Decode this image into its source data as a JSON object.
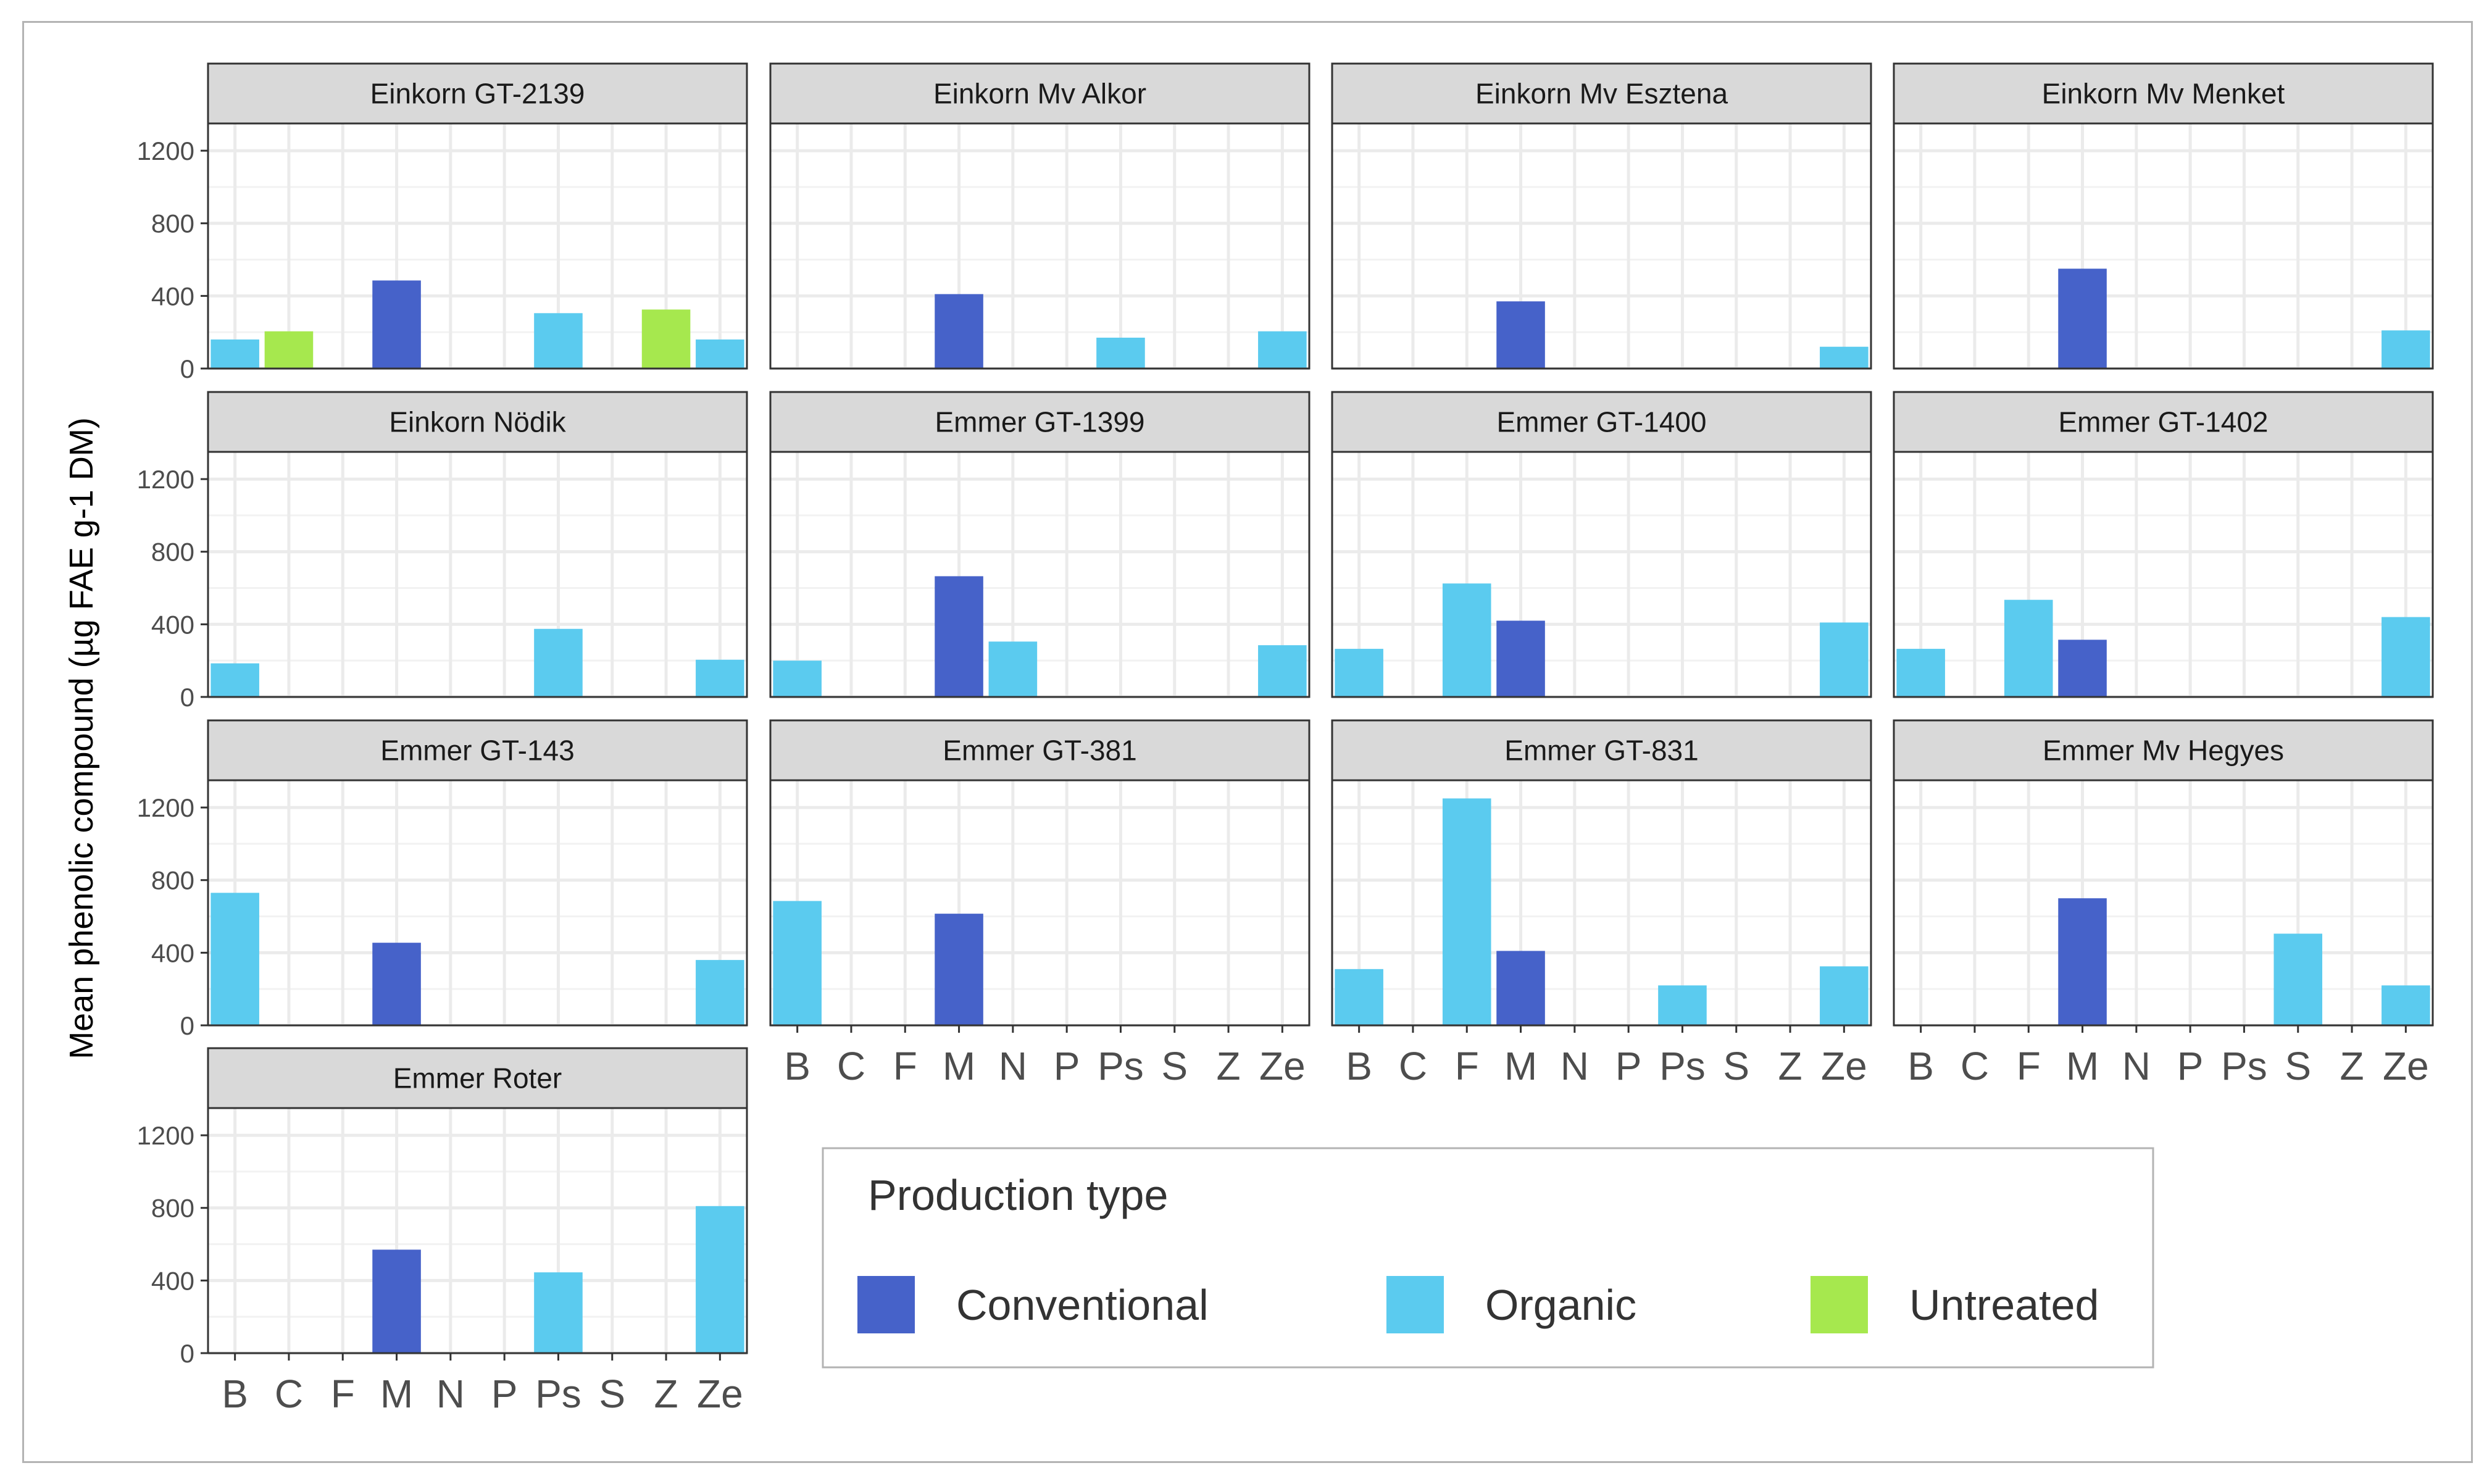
{
  "chart_data": {
    "type": "bar",
    "faceted": true,
    "ylabel": "Mean phenolic compound (µg FAE g-1 DM)",
    "ylim": [
      0,
      1350
    ],
    "yticks": [
      0,
      400,
      800,
      1200
    ],
    "categories": [
      "B",
      "C",
      "F",
      "M",
      "N",
      "P",
      "Ps",
      "S",
      "Z",
      "Ze"
    ],
    "legend": {
      "title": "Production type",
      "position": "bottom-right",
      "entries": [
        {
          "name": "Conventional",
          "color": "#4662c9"
        },
        {
          "name": "Organic",
          "color": "#5bcbef"
        },
        {
          "name": "Untreated",
          "color": "#a6e84e"
        }
      ]
    },
    "panels": [
      {
        "title": "Einkorn GT-2139",
        "bars": [
          {
            "category": "B",
            "value": 160,
            "type": "Organic"
          },
          {
            "category": "C",
            "value": 205,
            "type": "Untreated"
          },
          {
            "category": "M",
            "value": 485,
            "type": "Conventional"
          },
          {
            "category": "Ps",
            "value": 305,
            "type": "Organic"
          },
          {
            "category": "Z",
            "value": 325,
            "type": "Untreated"
          },
          {
            "category": "Ze",
            "value": 160,
            "type": "Organic"
          }
        ]
      },
      {
        "title": "Einkorn Mv Alkor",
        "bars": [
          {
            "category": "M",
            "value": 410,
            "type": "Conventional"
          },
          {
            "category": "Ps",
            "value": 170,
            "type": "Organic"
          },
          {
            "category": "Ze",
            "value": 205,
            "type": "Organic"
          }
        ]
      },
      {
        "title": "Einkorn Mv Esztena",
        "bars": [
          {
            "category": "M",
            "value": 370,
            "type": "Conventional"
          },
          {
            "category": "Ze",
            "value": 120,
            "type": "Organic"
          }
        ]
      },
      {
        "title": "Einkorn Mv Menket",
        "bars": [
          {
            "category": "M",
            "value": 550,
            "type": "Conventional"
          },
          {
            "category": "Ze",
            "value": 210,
            "type": "Organic"
          }
        ]
      },
      {
        "title": "Einkorn Nödik",
        "bars": [
          {
            "category": "B",
            "value": 185,
            "type": "Organic"
          },
          {
            "category": "Ps",
            "value": 375,
            "type": "Organic"
          },
          {
            "category": "Ze",
            "value": 205,
            "type": "Organic"
          }
        ]
      },
      {
        "title": "Emmer GT-1399",
        "bars": [
          {
            "category": "B",
            "value": 200,
            "type": "Organic"
          },
          {
            "category": "M",
            "value": 665,
            "type": "Conventional"
          },
          {
            "category": "N",
            "value": 305,
            "type": "Organic"
          },
          {
            "category": "Ze",
            "value": 285,
            "type": "Organic"
          }
        ]
      },
      {
        "title": "Emmer GT-1400",
        "bars": [
          {
            "category": "B",
            "value": 265,
            "type": "Organic"
          },
          {
            "category": "F",
            "value": 625,
            "type": "Organic"
          },
          {
            "category": "M",
            "value": 420,
            "type": "Conventional"
          },
          {
            "category": "Ze",
            "value": 410,
            "type": "Organic"
          }
        ]
      },
      {
        "title": "Emmer GT-1402",
        "bars": [
          {
            "category": "B",
            "value": 265,
            "type": "Organic"
          },
          {
            "category": "F",
            "value": 535,
            "type": "Organic"
          },
          {
            "category": "M",
            "value": 315,
            "type": "Conventional"
          },
          {
            "category": "Ze",
            "value": 440,
            "type": "Organic"
          }
        ]
      },
      {
        "title": "Emmer GT-143",
        "bars": [
          {
            "category": "B",
            "value": 730,
            "type": "Organic"
          },
          {
            "category": "M",
            "value": 455,
            "type": "Conventional"
          },
          {
            "category": "Ze",
            "value": 360,
            "type": "Organic"
          }
        ]
      },
      {
        "title": "Emmer GT-381",
        "bars": [
          {
            "category": "B",
            "value": 685,
            "type": "Organic"
          },
          {
            "category": "M",
            "value": 615,
            "type": "Conventional"
          }
        ]
      },
      {
        "title": "Emmer GT-831",
        "bars": [
          {
            "category": "B",
            "value": 310,
            "type": "Organic"
          },
          {
            "category": "F",
            "value": 1250,
            "type": "Organic"
          },
          {
            "category": "M",
            "value": 410,
            "type": "Conventional"
          },
          {
            "category": "Ps",
            "value": 220,
            "type": "Organic"
          },
          {
            "category": "Ze",
            "value": 325,
            "type": "Organic"
          }
        ]
      },
      {
        "title": "Emmer Mv Hegyes",
        "bars": [
          {
            "category": "M",
            "value": 700,
            "type": "Conventional"
          },
          {
            "category": "S",
            "value": 505,
            "type": "Organic"
          },
          {
            "category": "Ze",
            "value": 220,
            "type": "Organic"
          }
        ]
      },
      {
        "title": "Emmer Roter",
        "bars": [
          {
            "category": "M",
            "value": 570,
            "type": "Conventional"
          },
          {
            "category": "Ps",
            "value": 445,
            "type": "Organic"
          },
          {
            "category": "Ze",
            "value": 810,
            "type": "Organic"
          }
        ]
      }
    ]
  }
}
